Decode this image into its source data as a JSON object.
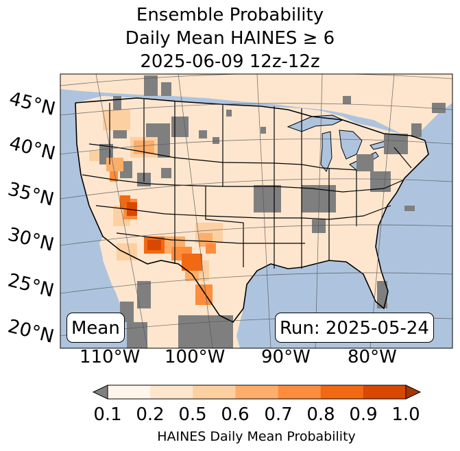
{
  "title": {
    "line1": "Ensemble Probability",
    "line2": "Daily Mean HAINES ≥ 6",
    "line3": "2025-06-09 12z-12z"
  },
  "latitude_labels": [
    "45°N",
    "40°N",
    "35°N",
    "30°N",
    "25°N",
    "20°N"
  ],
  "longitude_labels": [
    "110°W",
    "100°W",
    "90°W",
    "80°W"
  ],
  "left_box": "Mean",
  "right_box": "Run: 2025-05-24",
  "colorbar": {
    "label": "HAINES Daily Mean Probability",
    "ticks": [
      "0.1",
      "0.2",
      "0.5",
      "0.6",
      "0.7",
      "0.8",
      "0.9",
      "1.0"
    ],
    "colors": [
      "#fff5eb",
      "#fee6ce",
      "#fdd0a2",
      "#fdae6b",
      "#fd8d3c",
      "#f16913",
      "#d94801",
      "#a63603"
    ],
    "under_color": "#808080",
    "land_color": "#fee6ce",
    "ocean_color": "#aec4de",
    "missing_color": "#7f7f7f"
  }
}
